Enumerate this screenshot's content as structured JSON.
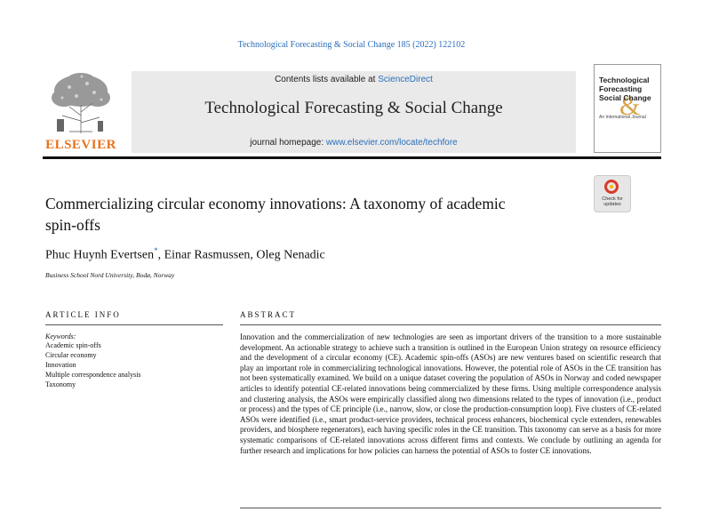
{
  "header": {
    "citation": "Technological Forecasting & Social Change 185 (2022) 122102",
    "contents_prefix": "Contents lists available at ",
    "contents_link": "ScienceDirect",
    "journal_title": "Technological Forecasting & Social Change",
    "homepage_prefix": "journal homepage: ",
    "homepage_link": "www.elsevier.com/locate/techfore",
    "publisher": "ELSEVIER"
  },
  "cover": {
    "title_line1": "Technological",
    "title_line2": "Forecasting",
    "title_line3": "Social Change",
    "subtitle": "An International Journal"
  },
  "check_updates": {
    "label_line1": "Check for",
    "label_line2": "updates"
  },
  "article": {
    "title_line1": "Commercializing circular economy innovations: A taxonomy of academic",
    "title_line2": "spin-offs",
    "author1": "Phuc Huynh Evertsen",
    "author1_mark": "*",
    "author_rest": ", Einar Rasmussen, Oleg Nenadic",
    "affiliation": "Business School Nord University, Bodø, Norway"
  },
  "article_info": {
    "heading": "ARTICLE INFO",
    "keywords_label": "Keywords:",
    "keywords": [
      "Academic spin-offs",
      "Circular economy",
      "Innovation",
      "Multiple correspondence analysis",
      "Taxonomy"
    ]
  },
  "abstract": {
    "heading": "ABSTRACT",
    "text": "Innovation and the commercialization of new technologies are seen as important drivers of the transition to a more sustainable development. An actionable strategy to achieve such a transition is outlined in the European Union strategy on resource efficiency and the development of a circular economy (CE). Academic spin-offs (ASOs) are new ventures based on scientific research that play an important role in commercializing technological innovations. However, the potential role of ASOs in the CE transition has not been systematically examined. We build on a unique dataset covering the population of ASOs in Norway and coded newspaper articles to identify potential CE-related innovations being commercialized by these firms. Using multiple correspondence analysis and clustering analysis, the ASOs were empirically classified along two dimensions related to the types of innovation (i.e., product or process) and the types of CE principle (i.e., narrow, slow, or close the production-consumption loop). Five clusters of CE-related ASOs were identified (i.e., smart product-service providers, technical process enhancers, biochemical cycle extenders, renewables providers, and biosphere regenerators), each having specific roles in the CE transition. This taxonomy can serve as a basis for more systematic comparisons of CE-related innovations across different firms and contexts. We conclude by outlining an agenda for further research and implications for how policies can harness the potential of ASOs to foster CE innovations."
  },
  "colors": {
    "link": "#2a6ebb",
    "elsevier_orange": "#e9711c",
    "banner_gray": "#eaeaea"
  }
}
